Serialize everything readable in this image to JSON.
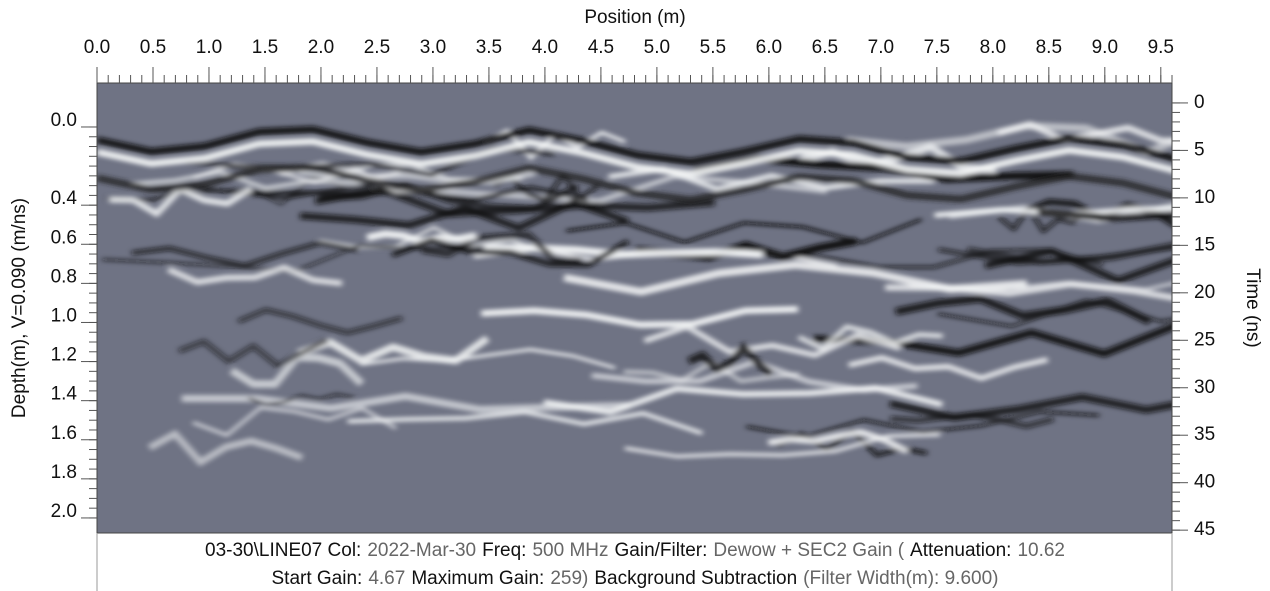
{
  "chart_data": {
    "type": "radargram",
    "title": "Position (m)",
    "y_label": "Depth(m), V=0.090 (m/ns)",
    "y2_label": "Time (ns)",
    "xlim": [
      0,
      9.6
    ],
    "xticks": [
      {
        "value": 0,
        "label": "0.0"
      },
      0.5,
      {
        "value": 1,
        "label": "1.0"
      },
      1.5,
      {
        "value": 2,
        "label": "2.0"
      },
      2.5,
      {
        "value": 3,
        "label": "3.0"
      },
      3.5,
      {
        "value": 4,
        "label": "4.0"
      },
      4.5,
      {
        "value": 5,
        "label": "5.0"
      },
      5.5,
      {
        "value": 6,
        "label": "6.0"
      },
      6.5,
      {
        "value": 7,
        "label": "7.0"
      },
      7.5,
      {
        "value": 8,
        "label": "8.0"
      },
      8.5,
      {
        "value": 9,
        "label": "9.0"
      },
      9.5
    ],
    "ylim": [
      -0.225,
      2.077
    ],
    "yticks": [
      {
        "value": 0,
        "label": "0.0"
      },
      0.4,
      0.6,
      0.8,
      {
        "value": 1,
        "label": "1.0"
      },
      1.2,
      1.4,
      1.6,
      1.8,
      {
        "value": 2,
        "label": "2.0"
      }
    ],
    "y2lim": [
      -2.1,
      45.3
    ],
    "y2ticks": [
      0,
      5,
      10,
      15,
      20,
      25,
      30,
      35,
      40,
      45
    ],
    "caption_lines": [
      [
        {
          "label": "03-30\\LINE07  Col:",
          "value": "2022-Mar-30"
        },
        {
          "label": "Freq:",
          "value": "500 MHz"
        },
        {
          "label": "Gain/Filter:",
          "value": "Dewow + SEC2 Gain ("
        },
        {
          "label": "Attenuation:",
          "value": "10.62"
        }
      ],
      [
        {
          "label": "Start Gain:",
          "value": "4.67"
        },
        {
          "label": "Maximum Gain:",
          "value": "259)"
        },
        {
          "label": "Background Subtraction",
          "value": "(Filter Width(m): 9.600)"
        }
      ]
    ]
  }
}
